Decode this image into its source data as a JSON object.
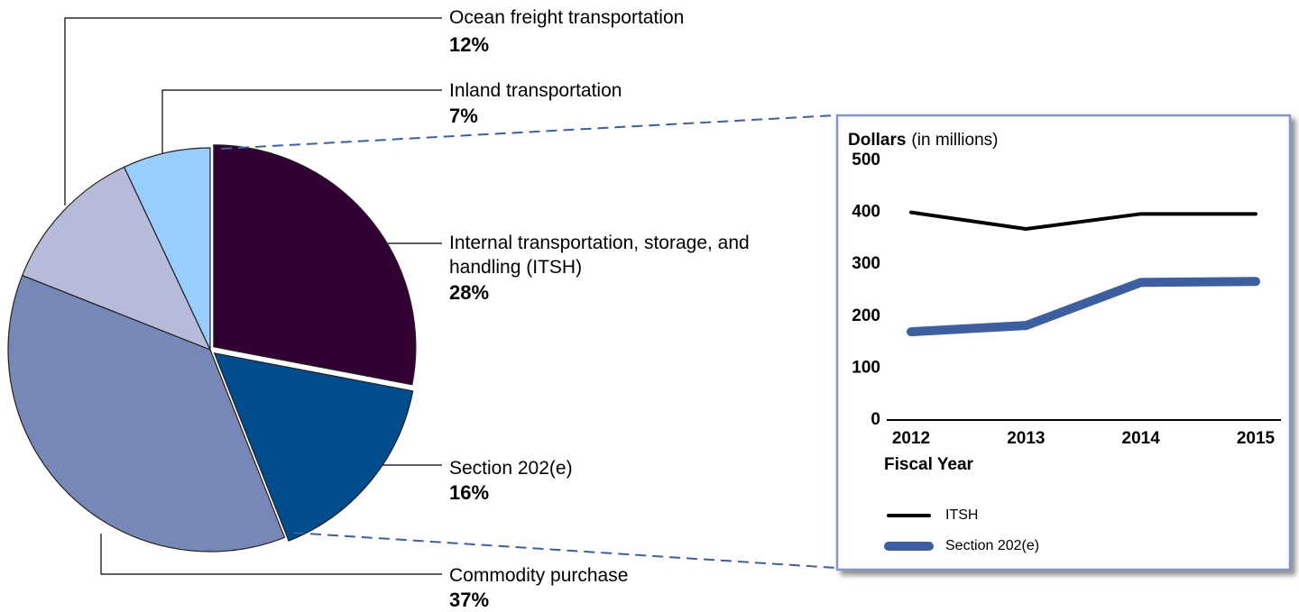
{
  "chart_data": [
    {
      "type": "pie",
      "labels": [
        "Internal transportation, storage, and handling (ITSH)",
        "Section 202(e)",
        "Commodity purchase",
        "Ocean freight transportation",
        "Inland transportation"
      ],
      "values": [
        28,
        16,
        37,
        12,
        7
      ],
      "value_labels": [
        "28%",
        "16%",
        "37%",
        "12%",
        "7%"
      ],
      "colors": [
        "#330033",
        "#004c8c",
        "#7788b8",
        "#b8bada",
        "#99ccff"
      ]
    },
    {
      "type": "line",
      "ylabel": "Dollars",
      "ylabel_units": "(in millions)",
      "xlabel": "Fiscal Year",
      "categories": [
        "2012",
        "2013",
        "2014",
        "2015"
      ],
      "series": [
        {
          "name": "ITSH",
          "color": "#000000",
          "values": [
            400,
            368,
            397,
            397
          ]
        },
        {
          "name": "Section 202(e)",
          "color": "#3d5fa0",
          "values": [
            170,
            182,
            265,
            267
          ]
        }
      ],
      "ylim": [
        0,
        500
      ],
      "yticks": [
        0,
        100,
        200,
        300,
        400,
        500
      ]
    }
  ]
}
